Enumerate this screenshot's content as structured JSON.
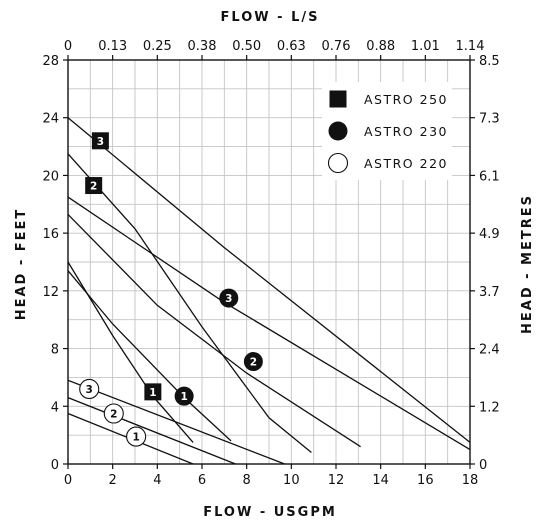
{
  "chart_data": {
    "type": "line",
    "xlabel": "FLOW - USGPM",
    "x2label": "FLOW - L/S",
    "ylabel": "HEAD - FEET",
    "y2label": "HEAD - METRES",
    "xlim": [
      0,
      18
    ],
    "ylim": [
      0,
      28
    ],
    "x_ticks": [
      "0",
      "2",
      "4",
      "6",
      "8",
      "10",
      "12",
      "14",
      "16",
      "18"
    ],
    "y_ticks": [
      "0",
      "4",
      "8",
      "12",
      "16",
      "20",
      "24",
      "28"
    ],
    "x2_ticks": [
      "0",
      "0.13",
      "0.25",
      "0.38",
      "0.50",
      "0.63",
      "0.76",
      "0.88",
      "1.01",
      "1.14"
    ],
    "y2_ticks": [
      "0",
      "1.2",
      "2.4",
      "3.7",
      "4.9",
      "6.1",
      "7.3",
      "8.5"
    ],
    "grid": true,
    "legend_position": "top-right",
    "legend": [
      {
        "name": "ASTRO 250",
        "marker": "filled-square"
      },
      {
        "name": "ASTRO 230",
        "marker": "filled-circle"
      },
      {
        "name": "ASTRO 220",
        "marker": "open-circle"
      }
    ],
    "series": [
      {
        "model": "ASTRO 250",
        "speed": "3",
        "marker": "filled-square",
        "x": [
          0,
          7,
          18
        ],
        "y": [
          24.0,
          15.0,
          1.5
        ]
      },
      {
        "model": "ASTRO 250",
        "speed": "2",
        "marker": "filled-square",
        "x": [
          0,
          3,
          6,
          9,
          10.9
        ],
        "y": [
          21.5,
          16.3,
          9.5,
          3.2,
          0.8
        ]
      },
      {
        "model": "ASTRO 250",
        "speed": "1",
        "marker": "filled-square",
        "x": [
          0,
          2,
          3.8,
          5.6
        ],
        "y": [
          14.0,
          8.9,
          4.7,
          1.5
        ]
      },
      {
        "model": "ASTRO 230",
        "speed": "3",
        "marker": "filled-circle",
        "x": [
          0,
          7,
          18
        ],
        "y": [
          18.5,
          11.2,
          1.0
        ]
      },
      {
        "model": "ASTRO 230",
        "speed": "2",
        "marker": "filled-circle",
        "x": [
          0,
          4,
          8,
          13.1
        ],
        "y": [
          17.3,
          11.0,
          6.3,
          1.2
        ]
      },
      {
        "model": "ASTRO 230",
        "speed": "1",
        "marker": "filled-circle",
        "x": [
          0,
          2,
          5.2,
          7.3
        ],
        "y": [
          13.4,
          9.7,
          4.6,
          1.6
        ]
      },
      {
        "model": "ASTRO 220",
        "speed": "3",
        "marker": "open-circle",
        "x": [
          0,
          9.7
        ],
        "y": [
          5.8,
          0.0
        ]
      },
      {
        "model": "ASTRO 220",
        "speed": "2",
        "marker": "open-circle",
        "x": [
          0,
          7.5
        ],
        "y": [
          4.6,
          0.0
        ]
      },
      {
        "model": "ASTRO 220",
        "speed": "1",
        "marker": "open-circle",
        "x": [
          0,
          5.6
        ],
        "y": [
          3.5,
          0.0
        ]
      }
    ],
    "curve_labels": [
      {
        "text": "3",
        "marker": "filled-square",
        "x": 1.45,
        "y": 22.4
      },
      {
        "text": "2",
        "marker": "filled-square",
        "x": 1.15,
        "y": 19.3
      },
      {
        "text": "1",
        "marker": "filled-square",
        "x": 3.8,
        "y": 5.0
      },
      {
        "text": "3",
        "marker": "filled-circle",
        "x": 7.2,
        "y": 11.5
      },
      {
        "text": "2",
        "marker": "filled-circle",
        "x": 8.3,
        "y": 7.1
      },
      {
        "text": "1",
        "marker": "filled-circle",
        "x": 5.2,
        "y": 4.7
      },
      {
        "text": "3",
        "marker": "open-circle",
        "x": 0.95,
        "y": 5.2
      },
      {
        "text": "2",
        "marker": "open-circle",
        "x": 2.05,
        "y": 3.5
      },
      {
        "text": "1",
        "marker": "open-circle",
        "x": 3.05,
        "y": 1.9
      }
    ]
  }
}
